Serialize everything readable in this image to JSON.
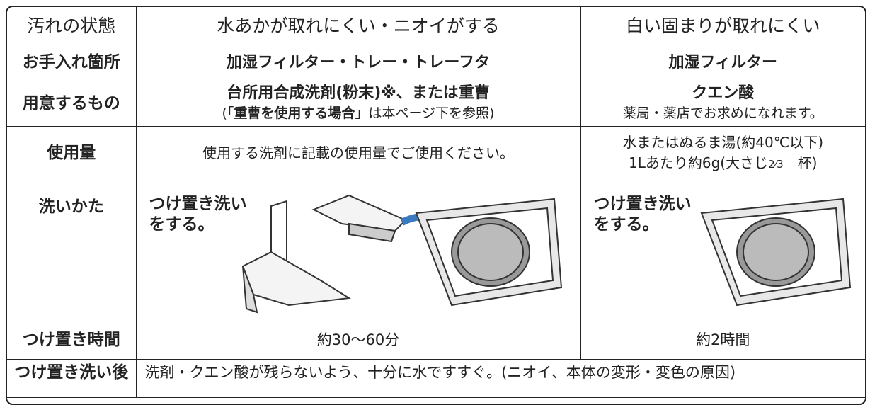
{
  "table": {
    "header": [
      "汚れの状態",
      "水あかが取れにくい・ニオイがする",
      "白い固まりが取れにくい"
    ],
    "care_area": {
      "label": "お手入れ箇所",
      "col1": "加湿フィルター・トレー・トレーフタ",
      "col2": "加湿フィルター"
    },
    "supplies": {
      "label": "用意するもの",
      "col1": {
        "main": "台所用合成洗剤(粉末)※、または重曹",
        "note_pre": "(「",
        "note_bold": "重曹を使用する場合",
        "note_post": "」は本ページ下を参照)"
      },
      "col2": {
        "main": "クエン酸",
        "note": "薬局・薬店でお求めになれます。"
      }
    },
    "amount": {
      "label": "使用量",
      "col1": "使用する洗剤に記載の使用量でご使用ください。",
      "col2": {
        "line1": "水またはぬるま湯(約40℃以下)",
        "line2_pre": "1Lあたり約6g(大さじ",
        "line2_frac": "2⁄3",
        "line2_post": "杯)"
      }
    },
    "method": {
      "label": "洗いかた",
      "col1": [
        "つけ置き洗い",
        "をする。"
      ],
      "col2": [
        "つけ置き洗い",
        "をする。"
      ]
    },
    "soak_time": {
      "label": "つけ置き時間",
      "col1": "約30〜60分",
      "col2": "約2時間"
    },
    "after": {
      "label": "つけ置き洗い後",
      "text": "洗剤・クエン酸が残らないよう、十分に水ですすぐ。(ニオイ、本体の変形・変色の原因)"
    }
  }
}
